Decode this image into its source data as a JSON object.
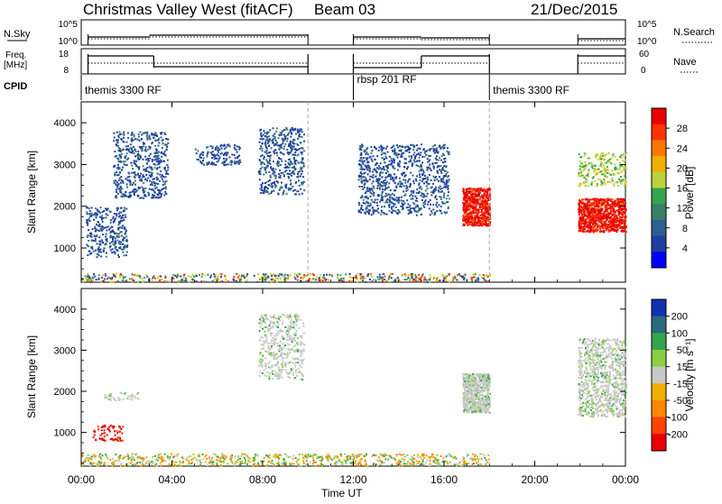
{
  "header": {
    "title": "Christmas Valley West (fitACF)",
    "beam": "Beam 03",
    "date": "21/Dec/2015"
  },
  "top_panels": {
    "nsky_label": "N.Sky",
    "nsky_ticks": [
      "10^5",
      "10^0"
    ],
    "nsearch_label": "N.Search",
    "nsearch_ticks": [
      "10^5",
      "10^0"
    ],
    "freq_label_1": "Freq.",
    "freq_label_2": "[MHz]",
    "freq_ticks": [
      "18",
      "8"
    ],
    "nave_label": "Nave",
    "nave_ticks": [
      "60",
      "0"
    ],
    "cpid_label": "CPID",
    "cpid_segments": [
      {
        "label": "themis 3300 RF",
        "start_h": 0.0,
        "end_h": 10.0
      },
      {
        "label": "rbsp 201 RF",
        "start_h": 12.0,
        "end_h": 18.0
      },
      {
        "label": "themis 3300 RF",
        "start_h": 18.0,
        "end_h": 24.0
      }
    ]
  },
  "power_panel": {
    "ylabel": "Slant Range [km]",
    "yticks": [
      "4000",
      "3000",
      "2000",
      "1000"
    ],
    "colorbar_label": "Power [dB]",
    "colorbar_ticks": [
      "28",
      "24",
      "20",
      "16",
      "12",
      "8",
      "4"
    ],
    "colors": [
      "#0000ff",
      "#1f3f9f",
      "#2d5f8f",
      "#3a7f6a",
      "#33a550",
      "#bcd23c",
      "#f0b000",
      "#ff7700",
      "#ff3300",
      "#e80000"
    ]
  },
  "velocity_panel": {
    "ylabel": "Slant Range [km]",
    "yticks": [
      "4000",
      "3000",
      "2000",
      "1000"
    ],
    "colorbar_label": "Velocity [m s⁻¹]",
    "colorbar_ticks": [
      "200",
      "100",
      "50",
      "15",
      "-15",
      "-50",
      "-100",
      "-200"
    ],
    "colors": [
      "#1030b0",
      "#2a6a80",
      "#33a550",
      "#8ad040",
      "#c8c8c8",
      "#f0b000",
      "#ff8800",
      "#ff4400",
      "#e80000"
    ]
  },
  "x_axis": {
    "label": "Time UT",
    "ticks": [
      "00:00",
      "04:00",
      "08:00",
      "12:00",
      "16:00",
      "20:00",
      "00:00"
    ]
  },
  "chart_data": {
    "type": "heatmap",
    "x_range_h": [
      0,
      24
    ],
    "y_range_km": [
      180,
      4500
    ],
    "data_gap_h": [
      10.0,
      12.0
    ],
    "data_gap2_h": [
      18.0,
      21.9
    ],
    "power_regions": [
      {
        "x_h": [
          0.2,
          2.0
        ],
        "y_km": [
          800,
          2000
        ],
        "value_db": 8
      },
      {
        "x_h": [
          1.4,
          3.8
        ],
        "y_km": [
          2200,
          3800
        ],
        "value_db": 10
      },
      {
        "x_h": [
          5.0,
          7.0
        ],
        "y_km": [
          3000,
          3500
        ],
        "value_db": 8
      },
      {
        "x_h": [
          7.8,
          9.8
        ],
        "y_km": [
          2300,
          3900
        ],
        "value_db": 9
      },
      {
        "x_h": [
          12.2,
          16.2
        ],
        "y_km": [
          1800,
          3500
        ],
        "value_db": 9
      },
      {
        "x_h": [
          16.8,
          18.0
        ],
        "y_km": [
          1550,
          2450
        ],
        "value_db": 28
      },
      {
        "x_h": [
          21.9,
          24.0
        ],
        "y_km": [
          1400,
          2200
        ],
        "value_db": 28
      },
      {
        "x_h": [
          21.9,
          24.0
        ],
        "y_km": [
          2500,
          3300
        ],
        "value_db": 16
      },
      {
        "x_h": [
          0.0,
          18.0
        ],
        "y_km": [
          200,
          400
        ],
        "value_db": 10
      }
    ],
    "velocity_regions": [
      {
        "x_h": [
          0.5,
          1.8
        ],
        "y_km": [
          800,
          1200
        ],
        "value_ms": -200
      },
      {
        "x_h": [
          1.0,
          2.5
        ],
        "y_km": [
          1800,
          2000
        ],
        "value_ms": 0
      },
      {
        "x_h": [
          7.8,
          9.8
        ],
        "y_km": [
          2300,
          3900
        ],
        "value_ms": 0
      },
      {
        "x_h": [
          16.8,
          18.0
        ],
        "y_km": [
          1500,
          2450
        ],
        "value_ms": 0
      },
      {
        "x_h": [
          21.9,
          24.0
        ],
        "y_km": [
          1400,
          3300
        ],
        "value_ms": 0
      },
      {
        "x_h": [
          0.0,
          18.0
        ],
        "y_km": [
          200,
          500
        ],
        "value_ms": -15
      }
    ]
  }
}
